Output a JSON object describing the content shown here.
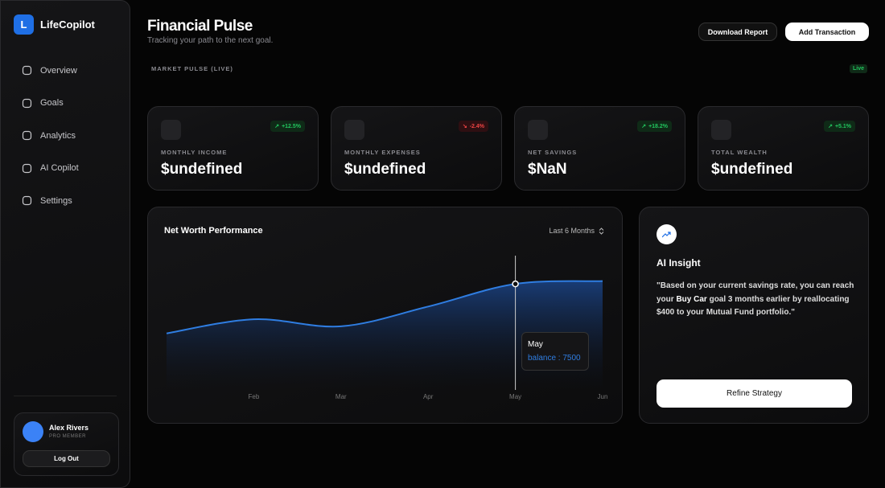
{
  "sidebar": {
    "logo": "L",
    "brand": "LifeCopilot",
    "nav": [
      "Overview",
      "Goals",
      "Analytics",
      "AI Copilot",
      "Settings"
    ],
    "user": {
      "name": "Alex Rivers",
      "role": "PRO MEMBER",
      "logout": "Log Out"
    }
  },
  "header": {
    "title": "Financial Pulse",
    "subtitle": "Tracking your path to the next goal.",
    "buttons": [
      "Download Report",
      "Add Transaction"
    ]
  },
  "market": {
    "label": "MARKET PULSE (LIVE)",
    "badge": "Live"
  },
  "stats": [
    {
      "label": "MONTHLY INCOME",
      "value": "$undefined",
      "change": "+12.5%",
      "trend": "up"
    },
    {
      "label": "MONTHLY EXPENSES",
      "value": "$undefined",
      "change": "-2.4%",
      "trend": "down"
    },
    {
      "label": "NET SAVINGS",
      "value": "$NaN",
      "change": "+18.2%",
      "trend": "up"
    },
    {
      "label": "TOTAL WEALTH",
      "value": "$undefined",
      "change": "+5.1%",
      "trend": "up"
    }
  ],
  "chart_data": {
    "type": "area",
    "title": "Net Worth Performance",
    "range": "Last 6 Months",
    "categories": [
      null,
      "Feb",
      "Mar",
      "Apr",
      "May",
      "Jun"
    ],
    "series": [
      {
        "name": "balance",
        "color": "#2f7de1",
        "values": [
          4000,
          5000,
          4500,
          5900,
          7500,
          7700
        ]
      }
    ],
    "ylim": [
      0,
      9500
    ]
  },
  "tooltip": {
    "category": "May",
    "text": "balance : 7500"
  },
  "insight": {
    "title": "AI Insight",
    "text_before": "\"Based on your current savings rate, you can reach your ",
    "highlight": "Buy Car",
    "text_after": " goal 3 months earlier by reallocating $400 to your Mutual Fund portfolio.\"",
    "button": "Refine Strategy"
  }
}
